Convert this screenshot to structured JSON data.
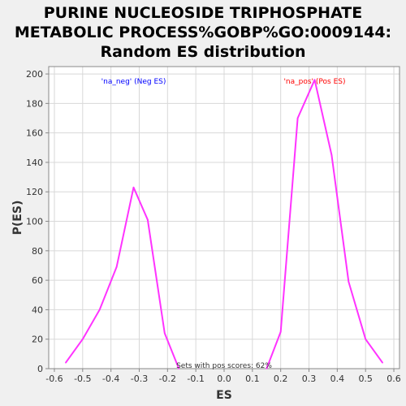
{
  "chart_data": {
    "type": "line",
    "title_lines": [
      "PURINE NUCLEOSIDE TRIPHOSPHATE",
      "METABOLIC PROCESS%GOBP%GO:0009144:",
      "Random ES distribution"
    ],
    "xlabel": "ES",
    "ylabel": "P(ES)",
    "xlim": [
      -0.62,
      0.62
    ],
    "ylim": [
      0,
      205
    ],
    "xticks": [
      -0.6,
      -0.5,
      -0.4,
      -0.3,
      -0.2,
      -0.1,
      0.0,
      0.1,
      0.2,
      0.3,
      0.4,
      0.5,
      0.6
    ],
    "xtick_labels": [
      "-0.6",
      "-0.5",
      "-0.4",
      "-0.3",
      "-0.2",
      "-0.1",
      "0.0",
      "0.1",
      "0.2",
      "0.3",
      "0.4",
      "0.5",
      "0.6"
    ],
    "yticks": [
      0,
      20,
      40,
      60,
      80,
      100,
      120,
      140,
      160,
      180,
      200
    ],
    "ytick_labels": [
      "0",
      "20",
      "40",
      "60",
      "80",
      "100",
      "120",
      "140",
      "160",
      "180",
      "200"
    ],
    "grid": true,
    "series": [
      {
        "color": "#ff33ff",
        "segments": [
          [
            [
              -0.56,
              4
            ],
            [
              -0.5,
              20
            ],
            [
              -0.44,
              40
            ],
            [
              -0.38,
              69
            ],
            [
              -0.32,
              123
            ],
            [
              -0.27,
              101
            ],
            [
              -0.21,
              24
            ],
            [
              -0.16,
              0
            ]
          ],
          [
            [
              0.15,
              0
            ],
            [
              0.2,
              25
            ],
            [
              0.26,
              170
            ],
            [
              0.32,
              196
            ],
            [
              0.38,
              145
            ],
            [
              0.44,
              59
            ],
            [
              0.5,
              20
            ],
            [
              0.56,
              4
            ]
          ]
        ]
      }
    ],
    "annotations": [
      {
        "text": "'na_neg' (Neg ES)",
        "x": -0.32,
        "y": 200,
        "color": "#0000ff"
      },
      {
        "text": "'na_pos' (Pos ES)",
        "x": 0.32,
        "y": 200,
        "color": "#ff0000"
      },
      {
        "text": "Sets with pos scores: 62%",
        "x": 0.0,
        "y": 1,
        "color": "#333333"
      }
    ]
  }
}
